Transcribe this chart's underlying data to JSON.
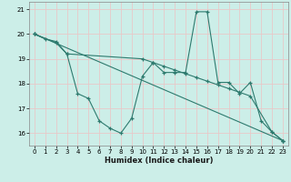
{
  "xlabel": "Humidex (Indice chaleur)",
  "bg_color": "#cceee8",
  "grid_color": "#e8c8c8",
  "line_color": "#2d7a6e",
  "xlim": [
    -0.5,
    23.5
  ],
  "ylim": [
    15.5,
    21.3
  ],
  "yticks": [
    16,
    17,
    18,
    19,
    20,
    21
  ],
  "xticks": [
    0,
    1,
    2,
    3,
    4,
    5,
    6,
    7,
    8,
    9,
    10,
    11,
    12,
    13,
    14,
    15,
    16,
    17,
    18,
    19,
    20,
    21,
    22,
    23
  ],
  "series1_x": [
    0,
    1,
    2,
    3,
    4,
    5,
    6,
    7,
    8,
    9,
    10,
    11,
    12,
    13,
    14,
    15,
    16,
    17,
    18,
    19,
    20,
    21,
    22,
    23
  ],
  "series1_y": [
    20.0,
    19.8,
    19.7,
    19.2,
    17.6,
    17.4,
    16.5,
    16.2,
    16.0,
    16.6,
    18.3,
    18.85,
    18.45,
    18.45,
    18.45,
    20.9,
    20.9,
    18.05,
    18.05,
    17.6,
    18.05,
    16.5,
    16.05,
    15.7
  ],
  "series2_x": [
    0,
    2,
    3,
    10,
    11,
    12,
    13,
    14,
    15,
    16,
    17,
    18,
    19,
    20,
    22,
    23
  ],
  "series2_y": [
    20.0,
    19.65,
    19.2,
    19.0,
    18.85,
    18.7,
    18.55,
    18.4,
    18.25,
    18.1,
    17.95,
    17.8,
    17.65,
    17.5,
    16.05,
    15.7
  ],
  "series3_x": [
    0,
    23
  ],
  "series3_y": [
    20.0,
    15.7
  ]
}
